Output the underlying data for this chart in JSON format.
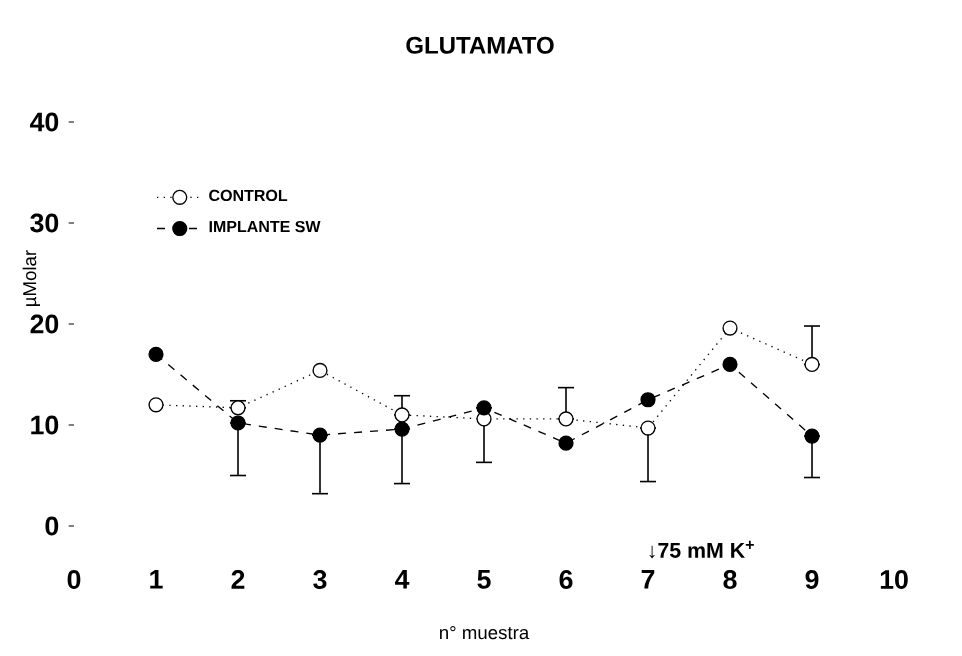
{
  "chart_data": {
    "type": "line",
    "title": "GLUTAMATO",
    "xlabel": "n° muestra",
    "ylabel": "µMolar",
    "x": [
      1,
      2,
      3,
      4,
      5,
      6,
      7,
      8,
      9
    ],
    "series": [
      {
        "name": "CONTROL",
        "color": "#ffffff",
        "marker": "circle",
        "line_style": "dotted",
        "values": [
          12.0,
          11.7,
          15.4,
          11.0,
          10.6,
          10.6,
          9.7,
          19.6,
          16.0
        ],
        "errors": [
          null,
          [
            11.7,
            12.4
          ],
          null,
          [
            11.0,
            12.9
          ],
          null,
          [
            10.6,
            13.7
          ],
          [
            4.4,
            9.7
          ],
          null,
          [
            16.0,
            19.8
          ]
        ]
      },
      {
        "name": "IMPLANTE SW",
        "color": "#000000",
        "marker": "circle",
        "line_style": "dashed",
        "values": [
          17.0,
          10.2,
          9.0,
          9.6,
          11.7,
          8.2,
          12.5,
          16.0,
          8.9
        ],
        "errors": [
          null,
          [
            5.0,
            10.2
          ],
          [
            3.2,
            9.0
          ],
          [
            4.2,
            9.6
          ],
          [
            6.3,
            11.7
          ],
          null,
          null,
          null,
          [
            4.8,
            8.9
          ]
        ]
      }
    ],
    "xlim": [
      0,
      10
    ],
    "ylim": [
      0,
      40
    ],
    "xticks": [
      0,
      1,
      2,
      3,
      4,
      5,
      6,
      7,
      8,
      9,
      10
    ],
    "yticks": [
      0,
      10,
      20,
      30,
      40
    ],
    "legend": "top left",
    "grid": false,
    "annotations": [
      "↓75 mM  K$^{+}$"
    ]
  }
}
